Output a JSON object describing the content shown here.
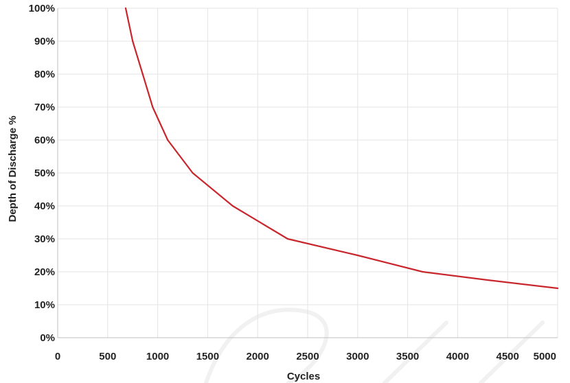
{
  "chart_data": {
    "type": "line",
    "title": "",
    "xlabel": "Cycles",
    "ylabel": "Depth of Discharge %",
    "xlim": [
      0,
      5000
    ],
    "ylim": [
      0,
      100
    ],
    "x_ticks": [
      0,
      500,
      1000,
      1500,
      2000,
      2500,
      3000,
      3500,
      4000,
      4500,
      5000
    ],
    "x_tick_labels": [
      "0",
      "500",
      "1000",
      "1500",
      "2000",
      "2500",
      "3000",
      "3500",
      "4000",
      "4500",
      "5000"
    ],
    "y_ticks": [
      0,
      10,
      20,
      30,
      40,
      50,
      60,
      70,
      80,
      90,
      100
    ],
    "y_tick_labels": [
      "0%",
      "10%",
      "20%",
      "30%",
      "40%",
      "50%",
      "60%",
      "70%",
      "80%",
      "90%",
      "100%"
    ],
    "grid": true,
    "legend": "none",
    "series": [
      {
        "color": "#c8262c",
        "x": [
          680,
          750,
          850,
          950,
          1100,
          1350,
          1750,
          2300,
          3000,
          3650,
          4300,
          5000
        ],
        "y": [
          100,
          90,
          80,
          70,
          60,
          50,
          40,
          30,
          25,
          20,
          17.5,
          15
        ]
      }
    ]
  }
}
